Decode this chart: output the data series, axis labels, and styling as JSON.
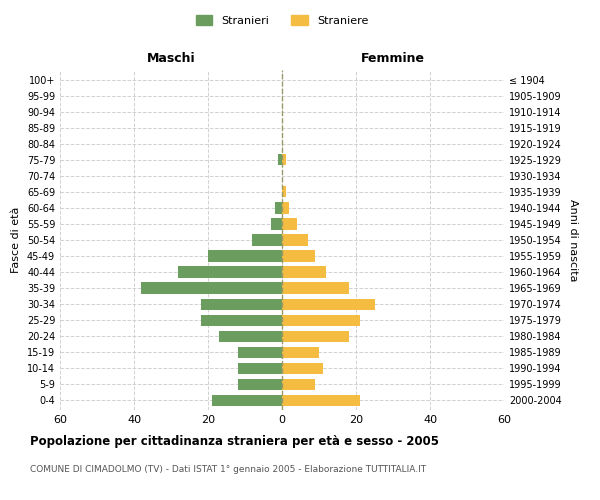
{
  "age_groups": [
    "0-4",
    "5-9",
    "10-14",
    "15-19",
    "20-24",
    "25-29",
    "30-34",
    "35-39",
    "40-44",
    "45-49",
    "50-54",
    "55-59",
    "60-64",
    "65-69",
    "70-74",
    "75-79",
    "80-84",
    "85-89",
    "90-94",
    "95-99",
    "100+"
  ],
  "birth_years": [
    "2000-2004",
    "1995-1999",
    "1990-1994",
    "1985-1989",
    "1980-1984",
    "1975-1979",
    "1970-1974",
    "1965-1969",
    "1960-1964",
    "1955-1959",
    "1950-1954",
    "1945-1949",
    "1940-1944",
    "1935-1939",
    "1930-1934",
    "1925-1929",
    "1920-1924",
    "1915-1919",
    "1910-1914",
    "1905-1909",
    "≤ 1904"
  ],
  "maschi": [
    19,
    12,
    12,
    12,
    17,
    22,
    22,
    38,
    28,
    20,
    8,
    3,
    2,
    0,
    0,
    1,
    0,
    0,
    0,
    0,
    0
  ],
  "femmine": [
    21,
    9,
    11,
    10,
    18,
    21,
    25,
    18,
    12,
    9,
    7,
    4,
    2,
    1,
    0,
    1,
    0,
    0,
    0,
    0,
    0
  ],
  "male_color": "#6b9e5e",
  "female_color": "#f5bc42",
  "grid_color": "#cccccc",
  "center_line_color": "#999966",
  "xlim": 60,
  "title": "Popolazione per cittadinanza straniera per età e sesso - 2005",
  "subtitle": "COMUNE DI CIMADOLMO (TV) - Dati ISTAT 1° gennaio 2005 - Elaborazione TUTTITALIA.IT",
  "ylabel_left": "Fasce di età",
  "ylabel_right": "Anni di nascita",
  "xlabel_maschi": "Maschi",
  "xlabel_femmine": "Femmine",
  "legend_stranieri": "Stranieri",
  "legend_straniere": "Straniere",
  "background_color": "#ffffff",
  "bar_height": 0.7
}
